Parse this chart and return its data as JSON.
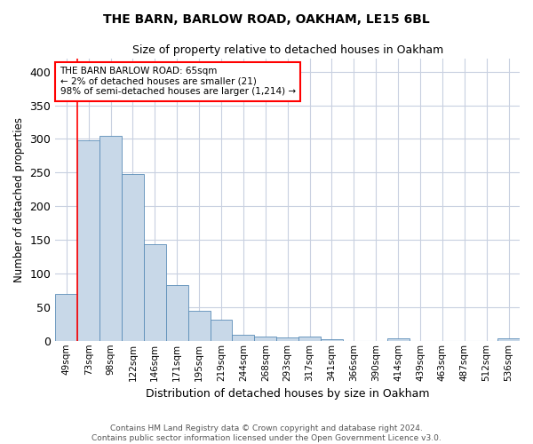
{
  "title": "THE BARN, BARLOW ROAD, OAKHAM, LE15 6BL",
  "subtitle": "Size of property relative to detached houses in Oakham",
  "xlabel": "Distribution of detached houses by size in Oakham",
  "ylabel": "Number of detached properties",
  "bar_color": "#c8d8e8",
  "bar_edge_color": "#5b8db8",
  "background_color": "#ffffff",
  "grid_color": "#c8d0e0",
  "categories": [
    "49sqm",
    "73sqm",
    "98sqm",
    "122sqm",
    "146sqm",
    "171sqm",
    "195sqm",
    "219sqm",
    "244sqm",
    "268sqm",
    "293sqm",
    "317sqm",
    "341sqm",
    "366sqm",
    "390sqm",
    "414sqm",
    "439sqm",
    "463sqm",
    "487sqm",
    "512sqm",
    "536sqm"
  ],
  "values": [
    70,
    298,
    304,
    248,
    143,
    83,
    44,
    32,
    9,
    6,
    5,
    6,
    2,
    0,
    0,
    3,
    0,
    0,
    0,
    0,
    3
  ],
  "ylim": [
    0,
    420
  ],
  "yticks": [
    0,
    50,
    100,
    150,
    200,
    250,
    300,
    350,
    400
  ],
  "annotation_text_line1": "THE BARN BARLOW ROAD: 65sqm",
  "annotation_text_line2": "← 2% of detached houses are smaller (21)",
  "annotation_text_line3": "98% of semi-detached houses are larger (1,214) →",
  "footer_line1": "Contains HM Land Registry data © Crown copyright and database right 2024.",
  "footer_line2": "Contains public sector information licensed under the Open Government Licence v3.0."
}
